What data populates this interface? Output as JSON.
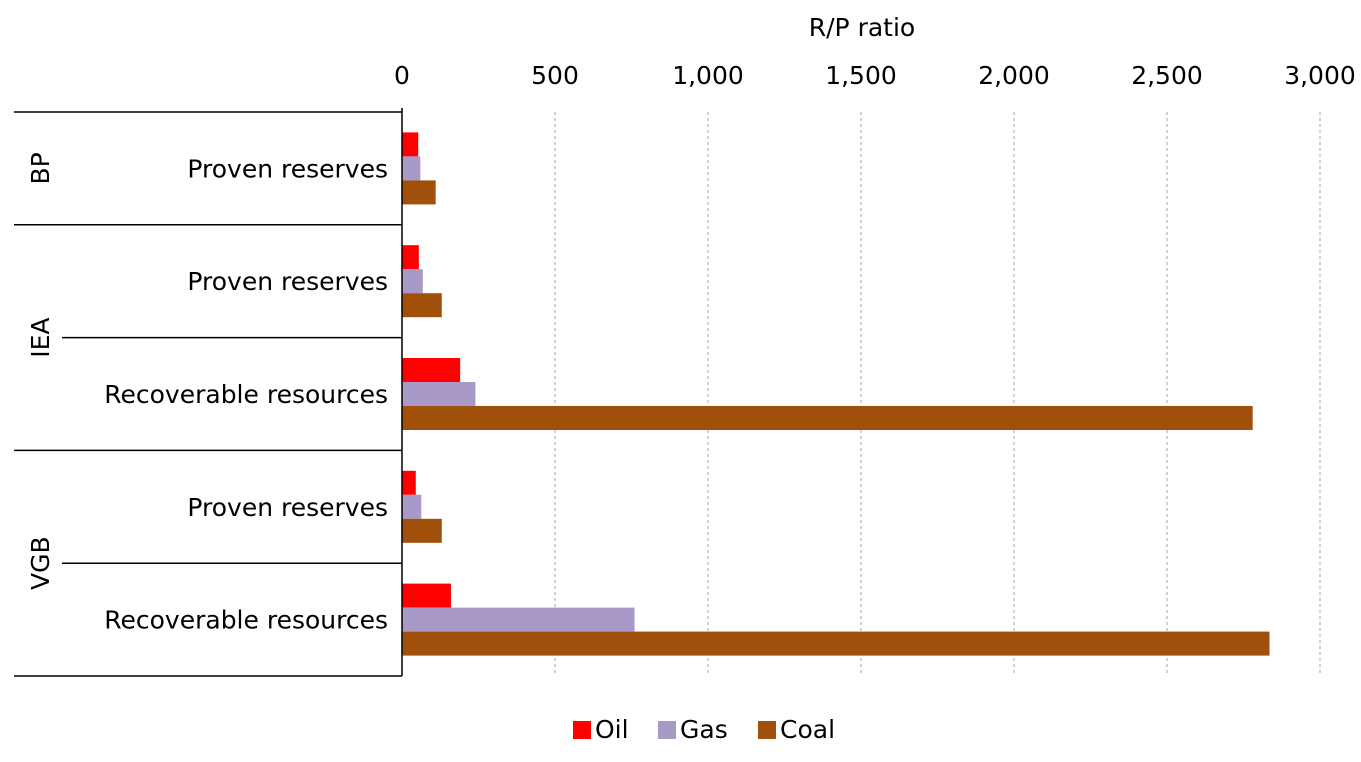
{
  "chart_data": {
    "type": "bar",
    "orientation": "horizontal",
    "xlabel": "R/P ratio",
    "xlim": [
      0,
      3000
    ],
    "xticks": [
      0,
      500,
      1000,
      1500,
      2000,
      2500,
      3000
    ],
    "xtick_labels": [
      "0",
      "500",
      "1,000",
      "1,500",
      "2,000",
      "2,500",
      "3,000"
    ],
    "x_axis_position": "top",
    "grid": "vertical-dashed",
    "legend_position": "bottom",
    "groups": [
      {
        "label": "BP",
        "categories": [
          "Proven reserves"
        ]
      },
      {
        "label": "IEA",
        "categories": [
          "Proven reserves",
          "Recoverable resources"
        ]
      },
      {
        "label": "VGB",
        "categories": [
          "Proven reserves",
          "Recoverable resources"
        ]
      }
    ],
    "categories": [
      "Proven reserves",
      "Proven reserves",
      "Recoverable resources",
      "Proven reserves",
      "Recoverable resources"
    ],
    "series": [
      {
        "name": "Oil",
        "color": "#ff0000",
        "values": [
          53,
          55,
          190,
          45,
          160
        ]
      },
      {
        "name": "Gas",
        "color": "#a899c8",
        "values": [
          60,
          68,
          240,
          63,
          760
        ]
      },
      {
        "name": "Coal",
        "color": "#a0500b",
        "values": [
          110,
          130,
          2780,
          130,
          2835
        ]
      }
    ]
  }
}
